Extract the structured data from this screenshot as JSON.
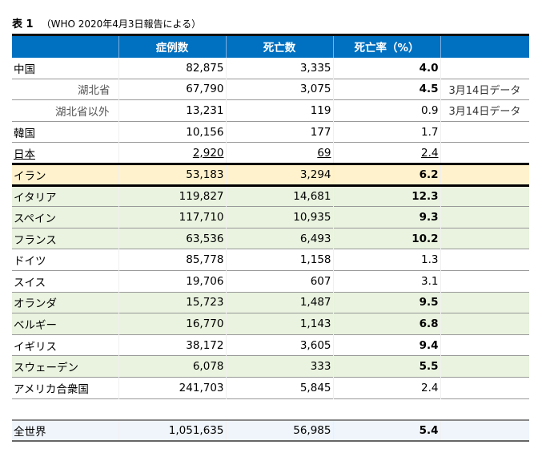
{
  "caption": {
    "label": "表 1",
    "source": "（WHO 2020年4月3日報告による）"
  },
  "headers": [
    "",
    "症例数",
    "死亡数",
    "死亡率（%）",
    ""
  ],
  "rows": [
    {
      "name": "中国",
      "cases": "82,875",
      "deaths": "3,335",
      "rate": "4.0",
      "bold": true,
      "note": ""
    },
    {
      "name": "湖北省",
      "cases": "67,790",
      "deaths": "3,075",
      "rate": "4.5",
      "bold": true,
      "note": "3月14日データ",
      "indent": 1
    },
    {
      "name": "湖北省以外",
      "cases": "13,231",
      "deaths": "119",
      "rate": "0.9",
      "bold": false,
      "note": "3月14日データ",
      "indent": 2
    },
    {
      "name": "韓国",
      "cases": "10,156",
      "deaths": "177",
      "rate": "1.7",
      "bold": false,
      "note": ""
    },
    {
      "name": "日本",
      "cases": "2,920",
      "deaths": "69",
      "rate": "2.4",
      "bold": false,
      "note": "",
      "underline": true
    },
    {
      "name": "イラン",
      "cases": "53,183",
      "deaths": "3,294",
      "rate": "6.2",
      "bold": true,
      "note": "",
      "highlight": "yellow"
    },
    {
      "name": "イタリア",
      "cases": "119,827",
      "deaths": "14,681",
      "rate": "12.3",
      "bold": true,
      "note": "",
      "highlight": "green"
    },
    {
      "name": "スペイン",
      "cases": "117,710",
      "deaths": "10,935",
      "rate": "9.3",
      "bold": true,
      "note": "",
      "highlight": "green"
    },
    {
      "name": "フランス",
      "cases": "63,536",
      "deaths": "6,493",
      "rate": "10.2",
      "bold": true,
      "note": "",
      "highlight": "green"
    },
    {
      "name": "ドイツ",
      "cases": "85,778",
      "deaths": "1,158",
      "rate": "1.3",
      "bold": false,
      "note": ""
    },
    {
      "name": "スイス",
      "cases": "19,706",
      "deaths": "607",
      "rate": "3.1",
      "bold": false,
      "note": ""
    },
    {
      "name": "オランダ",
      "cases": "15,723",
      "deaths": "1,487",
      "rate": "9.5",
      "bold": true,
      "note": "",
      "highlight": "green"
    },
    {
      "name": "ベルギー",
      "cases": "16,770",
      "deaths": "1,143",
      "rate": "6.8",
      "bold": true,
      "note": "",
      "highlight": "green"
    },
    {
      "name": "イギリス",
      "cases": "38,172",
      "deaths": "3,605",
      "rate": "9.4",
      "bold": true,
      "note": ""
    },
    {
      "name": "スウェーデン",
      "cases": "6,078",
      "deaths": "333",
      "rate": "5.5",
      "bold": true,
      "note": "",
      "highlight": "green"
    },
    {
      "name": "アメリカ合衆国",
      "cases": "241,703",
      "deaths": "5,845",
      "rate": "2.4",
      "bold": false,
      "note": ""
    }
  ],
  "total": {
    "name": "全世界",
    "cases": "1,051,635",
    "deaths": "56,985",
    "rate": "5.4"
  },
  "colors": {
    "header": "#0070c0",
    "green": "#e9f3df",
    "yellow": "#fff2cc",
    "total": "#eff5fb"
  }
}
